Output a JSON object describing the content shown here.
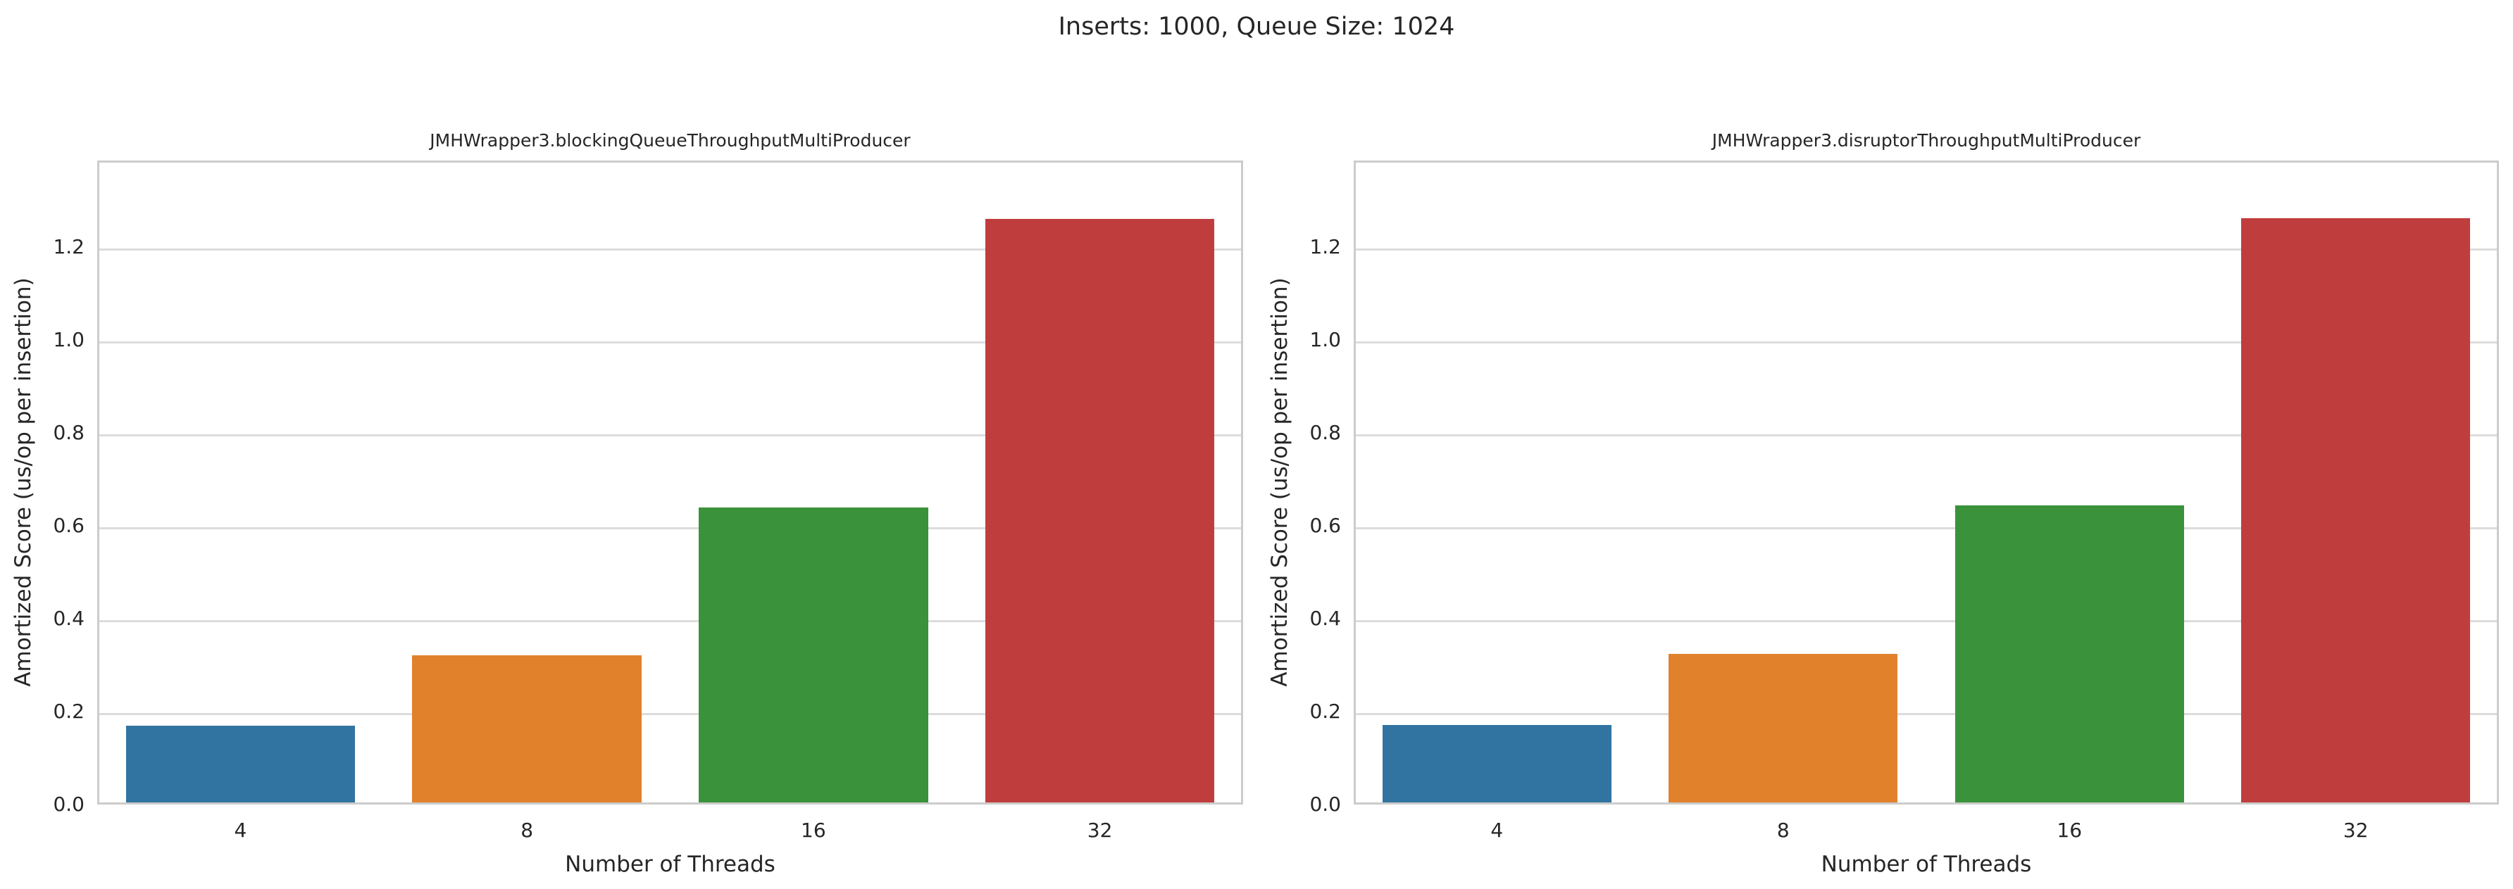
{
  "figure": {
    "suptitle": "Inserts: 1000, Queue Size: 1024",
    "background_color": "#ffffff",
    "text_color": "#262626",
    "grid_color": "#dcdcdc",
    "spine_color": "#cccccc",
    "grid": true,
    "legend": false
  },
  "chart_data": [
    {
      "type": "bar",
      "title": "JMHWrapper3.blockingQueueThroughputMultiProducer",
      "xlabel": "Number of Threads",
      "ylabel": "Amortized Score (us/op per insertion)",
      "categories": [
        "4",
        "8",
        "16",
        "32"
      ],
      "values": [
        0.165,
        0.317,
        0.635,
        1.255
      ],
      "bar_colors": [
        "#3274a1",
        "#e1812c",
        "#3a923a",
        "#c03d3e"
      ],
      "yticks": [
        0.0,
        0.2,
        0.4,
        0.6,
        0.8,
        1.0,
        1.2
      ],
      "ylim": [
        0,
        1.386
      ],
      "grid": true,
      "legend_position": "none"
    },
    {
      "type": "bar",
      "title": "JMHWrapper3.disruptorThroughputMultiProducer",
      "xlabel": "Number of Threads",
      "ylabel": "Amortized Score (us/op per insertion)",
      "categories": [
        "4",
        "8",
        "16",
        "32"
      ],
      "values": [
        0.167,
        0.32,
        0.64,
        1.258
      ],
      "bar_colors": [
        "#3274a1",
        "#e1812c",
        "#3a923a",
        "#c03d3e"
      ],
      "yticks": [
        0.0,
        0.2,
        0.4,
        0.6,
        0.8,
        1.0,
        1.2
      ],
      "ylim": [
        0,
        1.386
      ],
      "grid": true,
      "legend_position": "none"
    }
  ]
}
